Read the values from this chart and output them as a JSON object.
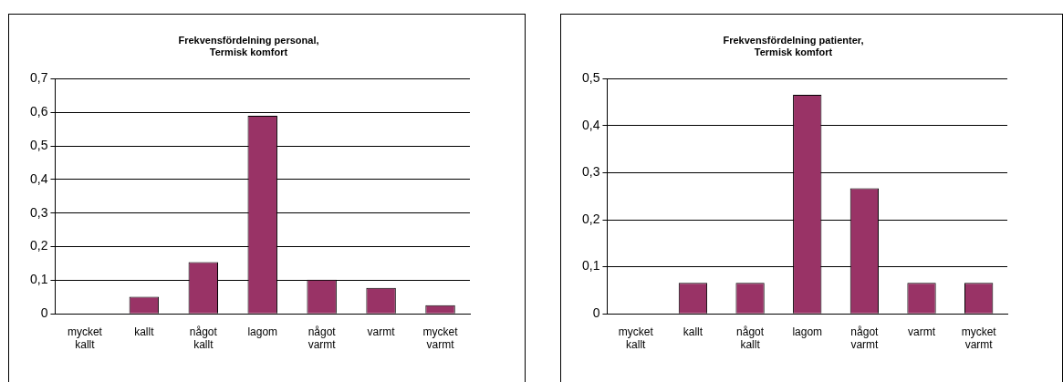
{
  "chart_data": [
    {
      "type": "bar",
      "title": "Frekvensfördelning personal,\nTermisk komfort",
      "categories": [
        "mycket kallt",
        "kallt",
        "något kallt",
        "lagom",
        "något varmt",
        "varmt",
        "mycket varmt"
      ],
      "values": [
        0,
        0.051,
        0.154,
        0.59,
        0.102,
        0.077,
        0.026
      ],
      "color": "#993366",
      "ylim": [
        0,
        0.7
      ],
      "yticks": [
        0,
        {
          "value": 0.1,
          "label": "0,1"
        },
        {
          "value": 0.2,
          "label": "0,2"
        },
        {
          "value": 0.3,
          "label": "0,3"
        },
        {
          "value": 0.4,
          "label": "0,4"
        },
        {
          "value": 0.5,
          "label": "0,5"
        },
        {
          "value": 0.6,
          "label": "0,6"
        },
        {
          "value": 0.7,
          "label": "0,7"
        }
      ],
      "grid": "y",
      "legend": false
    },
    {
      "type": "bar",
      "title": "Frekvensfördelning patienter,\nTermisk komfort",
      "categories": [
        "mycket kallt",
        "kallt",
        "något kallt",
        "lagom",
        "något varmt",
        "varmt",
        "mycket varmt"
      ],
      "values": [
        0,
        0.066,
        0.066,
        0.466,
        0.267,
        0.066,
        0.066
      ],
      "color": "#993366",
      "ylim": [
        0,
        0.5
      ],
      "yticks": [
        0,
        {
          "value": 0.1,
          "label": "0,1"
        },
        {
          "value": 0.2,
          "label": "0,2"
        },
        {
          "value": 0.3,
          "label": "0,3"
        },
        {
          "value": 0.4,
          "label": "0,4"
        },
        {
          "value": 0.5,
          "label": "0,5"
        }
      ],
      "grid": "y",
      "legend": false
    }
  ]
}
